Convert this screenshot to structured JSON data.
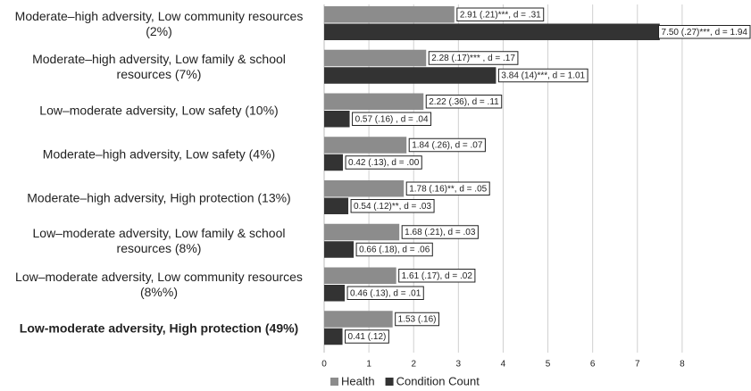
{
  "chart_data": {
    "type": "hbar",
    "categories": [
      "Moderate–high adversity, Low community resources\n(2%)",
      "Moderate–high adversity, Low family & school\nresources (7%)",
      "Low–moderate adversity, Low safety (10%)",
      "Moderate–high adversity, Low safety (4%)",
      "Moderate–high adversity, High protection (13%)",
      "Low–moderate adversity, Low family & school\nresources (8%)",
      "Low–moderate adversity, Low community resources\n(8%%)",
      "Low-moderate adversity, High protection (49%)"
    ],
    "series": [
      {
        "name": "Health",
        "color": "#8c8c8c",
        "values": [
          2.91,
          2.28,
          2.22,
          1.84,
          1.78,
          1.68,
          1.61,
          1.53
        ],
        "value_labels": [
          "2.91 (.21)***, d = .31",
          "2.28 (.17)*** , d = .17",
          "2.22 (.36), d = .11",
          "1.84 (.26),  d = .07",
          "1.78 (.16)**, d = .05",
          "1.68 (.21), d = .03",
          "1.61 (.17), d = .02",
          "1.53 (.16)"
        ]
      },
      {
        "name": "Condition Count",
        "color": "#333333",
        "values": [
          7.5,
          3.84,
          0.57,
          0.42,
          0.54,
          0.66,
          0.46,
          0.41
        ],
        "value_labels": [
          "7.50 (.27)***, d = 1.94",
          "3.84 (14)***, d = 1.01",
          "0.57 (.16) , d = .04",
          "0.42 (.13), d = .00",
          "0.54 (.12)**, d = .03",
          "0.66 (.18), d = .06",
          "0.46 (.13), d = .01",
          "0.41 (.12)"
        ]
      }
    ],
    "xlim": [
      0,
      9
    ],
    "xticks": [
      0,
      1,
      2,
      3,
      4,
      5,
      6,
      7,
      8
    ],
    "grid": true,
    "legend": "bottom"
  }
}
